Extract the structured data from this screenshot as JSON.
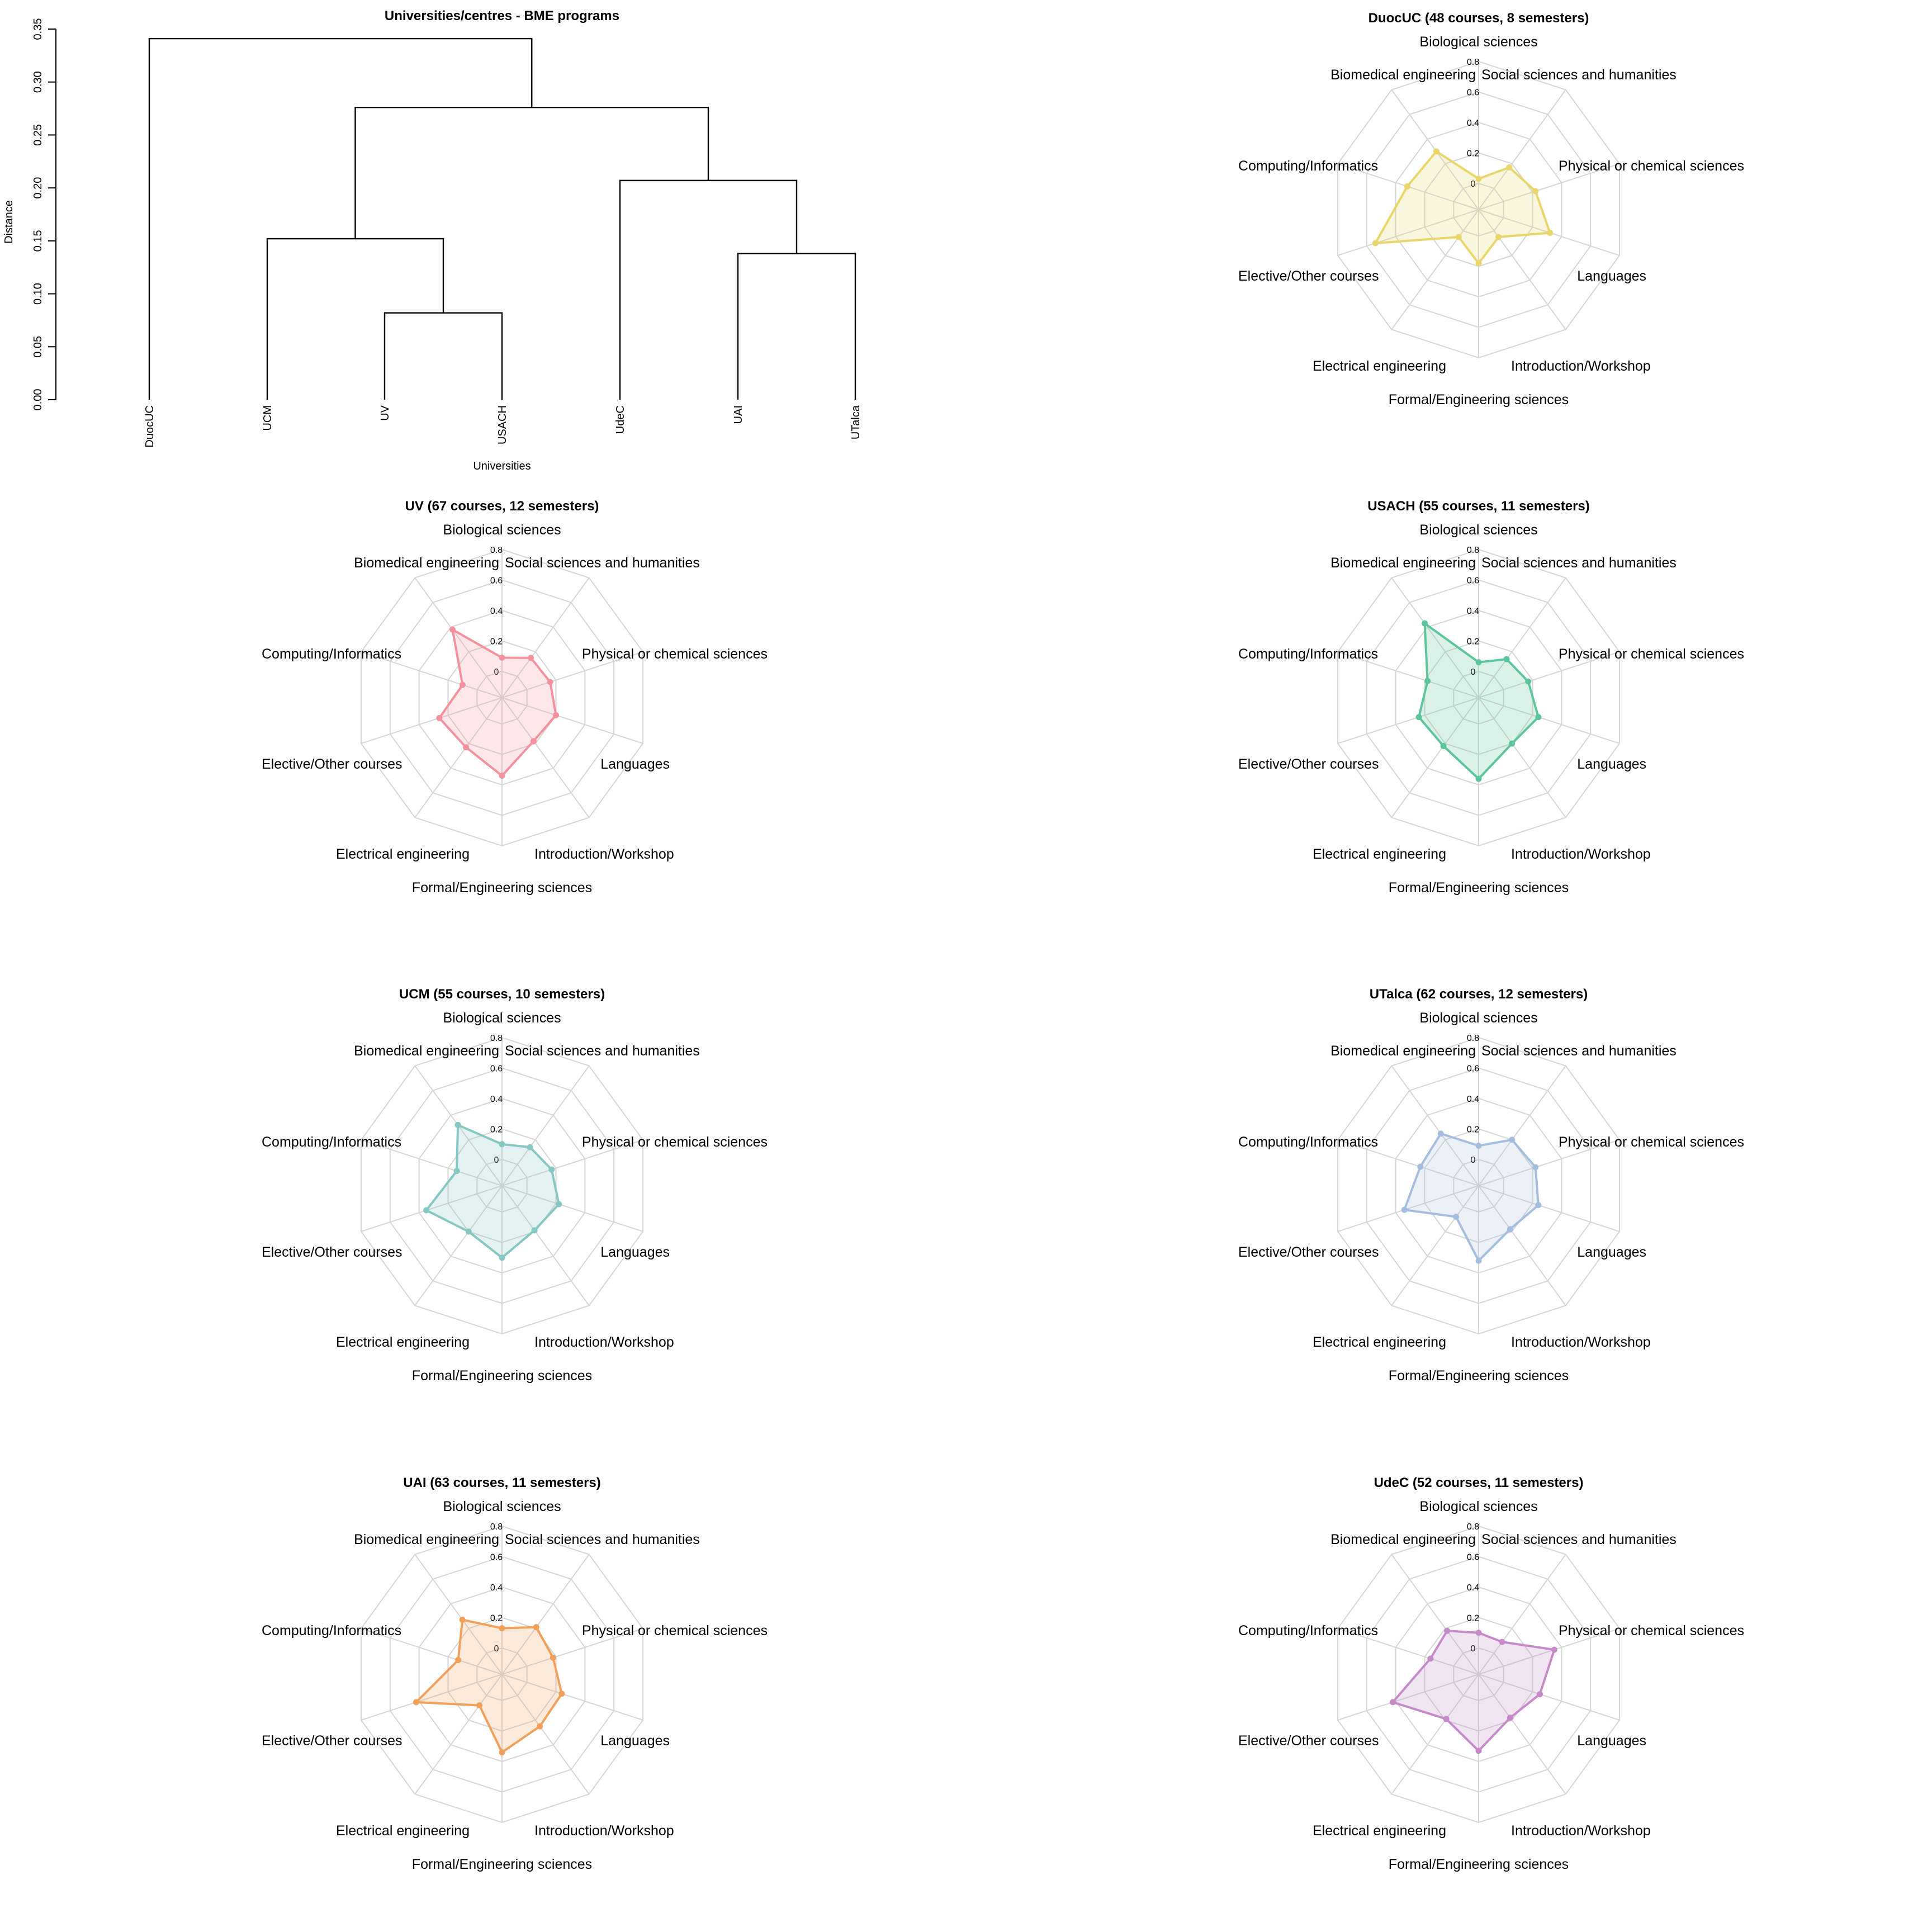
{
  "chart_data": [
    {
      "type": "dendrogram",
      "title": "Universities/centres - BME programs",
      "xlabel": "Universities",
      "ylabel": "Distance",
      "ylim": [
        0,
        0.35
      ],
      "yticks": [
        "0.00",
        "0.05",
        "0.10",
        "0.15",
        "0.20",
        "0.25",
        "0.30",
        "0.35"
      ],
      "leaves": [
        "DuocUC",
        "UCM",
        "UV",
        "USACH",
        "UdeC",
        "UAI",
        "UTalca"
      ],
      "merges": [
        {
          "a": "UV",
          "b": "USACH",
          "height": 0.082
        },
        {
          "a": "UAI",
          "b": "UTalca",
          "height": 0.138
        },
        {
          "a": "UCM",
          "b": "UV+USACH",
          "height": 0.152
        },
        {
          "a": "UdeC",
          "b": "UAI+UTalca",
          "height": 0.207
        },
        {
          "a": "UCM+UV+USACH",
          "b": "UdeC+UAI+UTalca",
          "height": 0.276
        },
        {
          "a": "DuocUC",
          "b": "rest",
          "height": 0.341
        }
      ]
    },
    {
      "type": "radar",
      "title": "DuocUC (48 courses, 8 semesters)",
      "color": "#e9d66b",
      "categories": [
        "Biological sciences",
        "Social sciences and humanities",
        "Physical or chemical sciences",
        "Languages",
        "Introduction/Workshop",
        "Formal/Engineering sciences",
        "Electrical engineering",
        "Elective/Other courses",
        "Computing/Informatics",
        "Biomedical engineering"
      ],
      "axis_ticks": [
        "0",
        "0.2",
        "0.4",
        "0.6",
        "0.8"
      ],
      "rmax": 0.8,
      "values": [
        0.03,
        0.17,
        0.22,
        0.32,
        0.05,
        0.18,
        0.05,
        0.54,
        0.32,
        0.3
      ]
    },
    {
      "type": "radar",
      "title": "UV (67 courses, 12 semesters)",
      "color": "#f4919e",
      "categories": [
        "Biological sciences",
        "Social sciences and humanities",
        "Physical or chemical sciences",
        "Languages",
        "Introduction/Workshop",
        "Formal/Engineering sciences",
        "Electrical engineering",
        "Elective/Other courses",
        "Computing/Informatics",
        "Biomedical engineering"
      ],
      "axis_ticks": [
        "0",
        "0.2",
        "0.4",
        "0.6",
        "0.8"
      ],
      "rmax": 0.8,
      "values": [
        0.09,
        0.15,
        0.16,
        0.2,
        0.18,
        0.34,
        0.23,
        0.26,
        0.1,
        0.38
      ]
    },
    {
      "type": "radar",
      "title": "USACH (55 courses, 11 semesters)",
      "color": "#5cc59c",
      "categories": [
        "Biological sciences",
        "Social sciences and humanities",
        "Physical or chemical sciences",
        "Languages",
        "Introduction/Workshop",
        "Formal/Engineering sciences",
        "Electrical engineering",
        "Elective/Other courses",
        "Computing/Informatics",
        "Biomedical engineering"
      ],
      "axis_ticks": [
        "0",
        "0.2",
        "0.4",
        "0.6",
        "0.8"
      ],
      "rmax": 0.8,
      "values": [
        0.06,
        0.14,
        0.17,
        0.24,
        0.2,
        0.36,
        0.22,
        0.24,
        0.18,
        0.43
      ]
    },
    {
      "type": "radar",
      "title": "UCM (55 courses, 10 semesters)",
      "color": "#84c7c3",
      "categories": [
        "Biological sciences",
        "Social sciences and humanities",
        "Physical or chemical sciences",
        "Languages",
        "Introduction/Workshop",
        "Formal/Engineering sciences",
        "Electrical engineering",
        "Elective/Other courses",
        "Computing/Informatics",
        "Biomedical engineering"
      ],
      "axis_ticks": [
        "0",
        "0.2",
        "0.4",
        "0.6",
        "0.8"
      ],
      "rmax": 0.8,
      "values": [
        0.1,
        0.14,
        0.17,
        0.22,
        0.19,
        0.3,
        0.2,
        0.35,
        0.14,
        0.32
      ]
    },
    {
      "type": "radar",
      "title": "UTalca (62 courses, 12 semesters)",
      "color": "#a7bde0",
      "categories": [
        "Biological sciences",
        "Social sciences and humanities",
        "Physical or chemical sciences",
        "Languages",
        "Introduction/Workshop",
        "Formal/Engineering sciences",
        "Electrical engineering",
        "Elective/Other courses",
        "Computing/Informatics",
        "Biomedical engineering"
      ],
      "axis_ticks": [
        "0",
        "0.2",
        "0.4",
        "0.6",
        "0.8"
      ],
      "rmax": 0.8,
      "values": [
        0.09,
        0.2,
        0.22,
        0.24,
        0.18,
        0.32,
        0.08,
        0.34,
        0.23,
        0.25
      ]
    },
    {
      "type": "radar",
      "title": "UAI (63 courses, 11 semesters)",
      "color": "#f0a05b",
      "categories": [
        "Biological sciences",
        "Social sciences and humanities",
        "Physical or chemical sciences",
        "Languages",
        "Introduction/Workshop",
        "Formal/Engineering sciences",
        "Electrical engineering",
        "Elective/Other courses",
        "Computing/Informatics",
        "Biomedical engineering"
      ],
      "axis_ticks": [
        "0",
        "0.2",
        "0.4",
        "0.6",
        "0.8"
      ],
      "rmax": 0.8,
      "values": [
        0.13,
        0.21,
        0.18,
        0.24,
        0.25,
        0.34,
        0.08,
        0.42,
        0.13,
        0.27
      ]
    },
    {
      "type": "radar",
      "title": "UdeC (52 courses, 11 semesters)",
      "color": "#c68ac9",
      "categories": [
        "Biological sciences",
        "Social sciences and humanities",
        "Physical or chemical sciences",
        "Languages",
        "Introduction/Workshop",
        "Formal/Engineering sciences",
        "Electrical engineering",
        "Elective/Other courses",
        "Computing/Informatics",
        "Biomedical engineering"
      ],
      "axis_ticks": [
        "0",
        "0.2",
        "0.4",
        "0.6",
        "0.8"
      ],
      "rmax": 0.8,
      "values": [
        0.1,
        0.09,
        0.35,
        0.25,
        0.18,
        0.33,
        0.19,
        0.42,
        0.16,
        0.18
      ]
    }
  ]
}
